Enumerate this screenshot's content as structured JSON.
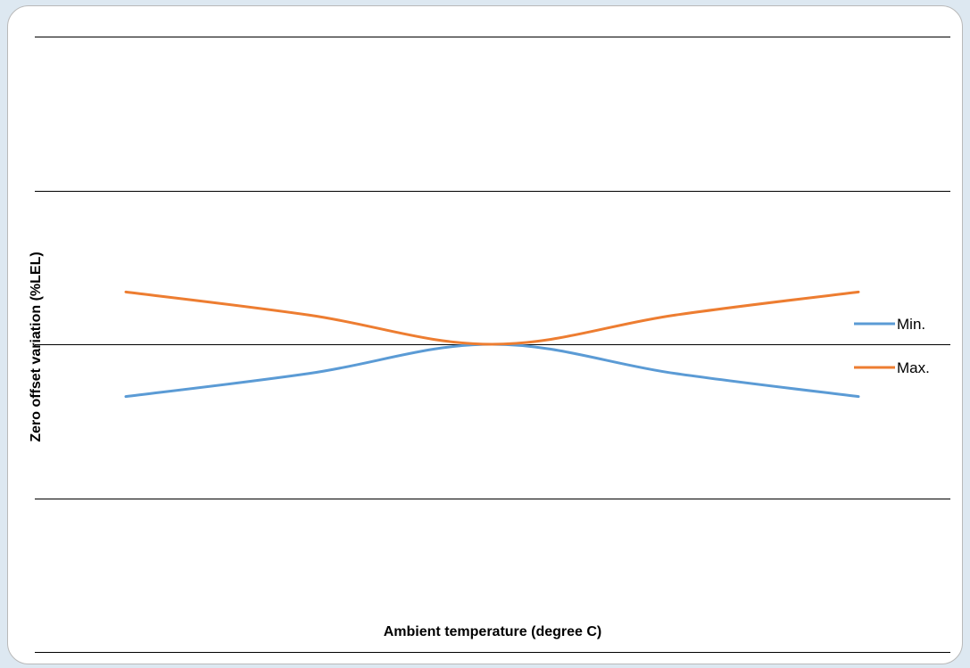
{
  "chart_data": {
    "type": "line",
    "title": "",
    "xlabel": "Ambient temperature (degree C)",
    "ylabel": "Zero offset variation (%LEL)",
    "categories": [
      "",
      "",
      "",
      "",
      ""
    ],
    "series": [
      {
        "name": "Min.",
        "color": "#5b9bd5",
        "values": [
          -3.4,
          -1.9,
          0,
          -1.9,
          -3.4
        ]
      },
      {
        "name": "Max.",
        "color": "#ed7d31",
        "values": [
          3.4,
          1.9,
          0,
          1.9,
          3.4
        ]
      }
    ],
    "ylim": [
      -20,
      20
    ],
    "yticks": [
      -20,
      -10,
      0,
      10,
      20
    ],
    "grid": true,
    "legend_position": "right"
  }
}
